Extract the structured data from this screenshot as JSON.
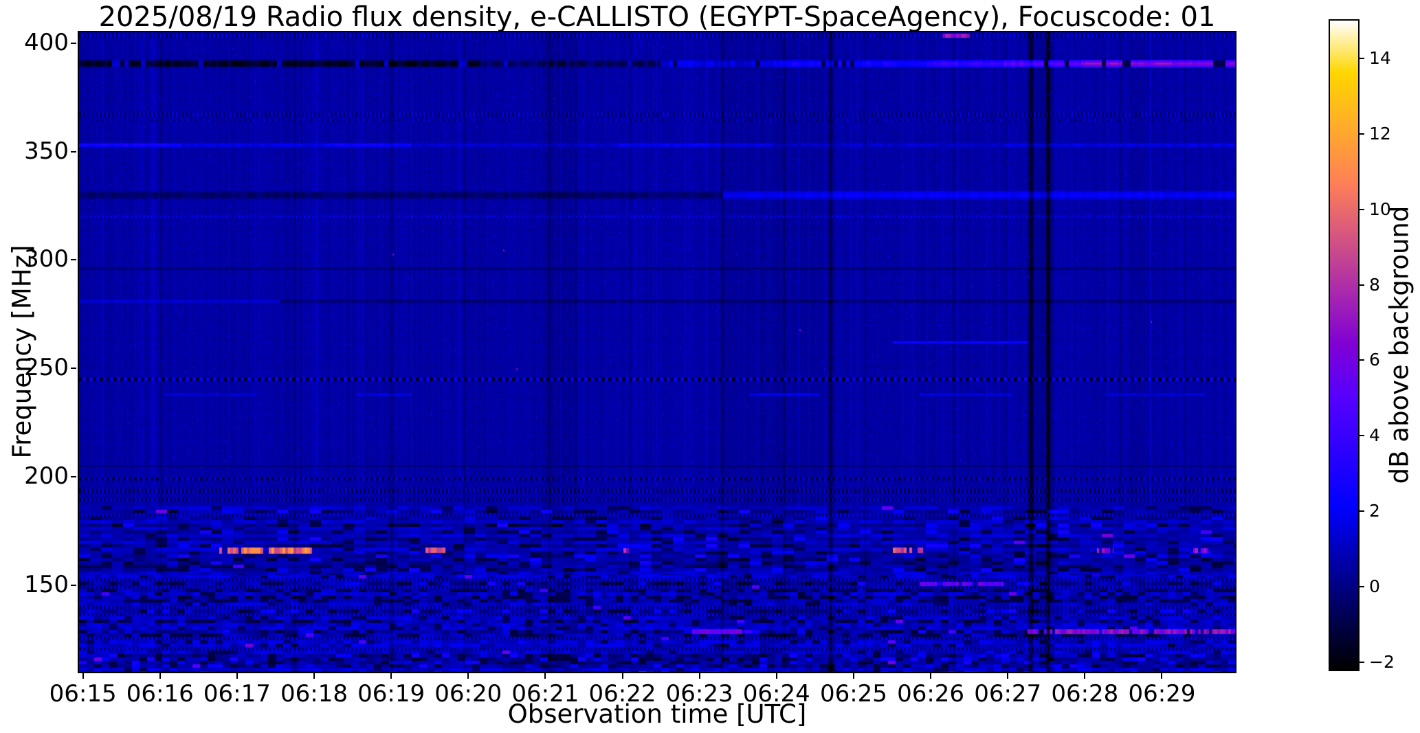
{
  "figure": {
    "title": "2025/08/19  Radio flux density, e-CALLISTO (EGYPT-SpaceAgency), Focuscode: 01",
    "xlabel": "Observation time [UTC]",
    "ylabel": "Frequency [MHz]",
    "colorbar_label": "dB above background"
  },
  "chart_data": {
    "type": "heatmap",
    "subtype": "solar-radio-spectrogram",
    "title": "2025/08/19  Radio flux density, e-CALLISTO (EGYPT-SpaceAgency), Focuscode: 01",
    "xlabel": "Observation time [UTC]",
    "ylabel": "Frequency [MHz]",
    "x_ticks": [
      "06:15",
      "06:16",
      "06:17",
      "06:18",
      "06:19",
      "06:20",
      "06:21",
      "06:22",
      "06:23",
      "06:24",
      "06:25",
      "06:26",
      "06:27",
      "06:28",
      "06:29"
    ],
    "x_tick_minutes": [
      0,
      1,
      2,
      3,
      4,
      5,
      6,
      7,
      8,
      9,
      10,
      11,
      12,
      13,
      14
    ],
    "x_range_minutes": [
      0,
      15
    ],
    "y_ticks": [
      "400",
      "350",
      "300",
      "250",
      "200",
      "150"
    ],
    "y_tick_values": [
      400,
      350,
      300,
      250,
      200,
      150
    ],
    "ylim": [
      110,
      405
    ],
    "grid": false,
    "colorbar": {
      "label": "dB above background",
      "ticks": [
        "14",
        "12",
        "10",
        "8",
        "6",
        "4",
        "2",
        "0",
        "−2"
      ],
      "tick_values": [
        14,
        12,
        10,
        8,
        6,
        4,
        2,
        0,
        -2
      ],
      "vmin": -2.2,
      "vmax": 15,
      "colormap": "gnuplot2"
    },
    "background_db": 0.55,
    "h_bands": [
      {
        "f": 403.5,
        "hw": 1.3,
        "dash": 3,
        "hi": 1.7,
        "lo": -0.6
      },
      {
        "f": 390.5,
        "hw": 1.7,
        "jitter": 1.6,
        "brk": 0.12,
        "segs": [
          [
            0,
            5.2,
            -2
          ],
          [
            5.2,
            7.5,
            -0.8
          ],
          [
            7.5,
            9,
            1.8
          ],
          [
            9,
            11,
            3
          ],
          [
            11,
            12,
            4.2
          ],
          [
            12,
            13,
            5.5
          ],
          [
            13,
            15,
            7
          ]
        ]
      },
      {
        "f": 367,
        "hw": 1.1,
        "dash": 3,
        "hi": 1.6,
        "lo": -0.7
      },
      {
        "f": 364.5,
        "hw": 0.6,
        "dash": 4,
        "hi": 1.2,
        "lo": -0.3
      },
      {
        "f": 353,
        "hw": 0.9,
        "jitter": 0.9,
        "segs": [
          [
            0,
            1.3,
            3.1
          ],
          [
            1.3,
            3.2,
            2
          ],
          [
            3.2,
            4.3,
            2.9
          ],
          [
            4.3,
            7,
            1.5
          ],
          [
            7,
            9,
            2.3
          ],
          [
            9,
            12,
            1.4
          ],
          [
            12,
            15,
            1.9
          ]
        ]
      },
      {
        "f": 330,
        "hw": 1.9,
        "jitter": 0.7,
        "segs": [
          [
            0,
            8.34,
            -0.55
          ],
          [
            8.34,
            15,
            2.3
          ]
        ]
      },
      {
        "f": 320,
        "hw": 0.7,
        "dash": 3,
        "hi": 2.1,
        "lo": 0.4
      },
      {
        "f": 296,
        "hw": 0.6,
        "jitter": 0.3,
        "segs": [
          [
            0,
            15,
            -0.4
          ]
        ]
      },
      {
        "f": 281,
        "hw": 0.7,
        "jitter": 0.5,
        "segs": [
          [
            0,
            2.6,
            1.6
          ],
          [
            2.6,
            15,
            -0.45
          ]
        ]
      },
      {
        "f": 262,
        "hw": 0.6,
        "jitter": 0.6,
        "segs": [
          [
            10.55,
            12.3,
            2.8
          ]
        ]
      },
      {
        "f": 245,
        "hw": 1.0,
        "dash": 5,
        "hi": 2.4,
        "lo": -2.1
      },
      {
        "f": 238,
        "hw": 0.8,
        "jitter": 0.6,
        "segs": [
          [
            1.1,
            2.3,
            1.5
          ],
          [
            3.6,
            4.3,
            1.8
          ],
          [
            8.7,
            9.6,
            2.3
          ],
          [
            10.9,
            12.1,
            1.6
          ],
          [
            13.3,
            14.6,
            1.5
          ]
        ]
      },
      {
        "f": 205,
        "hw": 0.5,
        "jitter": 0.4,
        "segs": [
          [
            0,
            15,
            -0.35
          ]
        ]
      },
      {
        "f": 199,
        "hw": 0.8,
        "dash": 4,
        "hi": 1.5,
        "lo": -1.2
      },
      {
        "f": 193.5,
        "hw": 1.0,
        "dash": 3,
        "hi": 1.7,
        "lo": -1.5
      },
      {
        "f": 189.5,
        "hw": 0.8,
        "dash": 3,
        "hi": 1.4,
        "lo": -1.0
      }
    ],
    "noise_regions": [
      {
        "f0": 155,
        "f1": 186.5,
        "base": 0.45,
        "amp": 1.5,
        "black": 0.15,
        "bright": 0.1,
        "bw": 16,
        "bh": 5,
        "dots": 0.004
      },
      {
        "f0": 110,
        "f1": 155,
        "base": 0.5,
        "amp": 1.9,
        "black": 0.2,
        "bright": 0.13,
        "bw": 11,
        "bh": 5,
        "dots": 0.012
      }
    ],
    "hot_spots": [
      [
        1.78,
        3.02,
        166,
        10,
        1.4
      ],
      [
        4.38,
        4.75,
        166,
        9,
        1.3
      ],
      [
        7.0,
        7.16,
        166,
        7,
        1.1
      ],
      [
        10.55,
        10.95,
        166,
        9,
        1.3
      ],
      [
        13.2,
        13.42,
        166,
        7,
        1.1
      ],
      [
        14.45,
        14.65,
        166,
        6.5,
        1.1
      ],
      [
        12.3,
        15,
        128.5,
        6.3,
        1.0
      ],
      [
        7.95,
        8.6,
        128.5,
        5.5,
        1.0
      ],
      [
        10.9,
        12.0,
        150.5,
        5.2,
        0.9
      ],
      [
        11.2,
        11.55,
        403.5,
        6.6,
        1.0
      ]
    ],
    "specks": [
      [
        4.07,
        303
      ],
      [
        5.5,
        305
      ],
      [
        9.35,
        268
      ],
      [
        13.9,
        272
      ],
      [
        5.67,
        250
      ]
    ],
    "v_lines": [
      [
        1.05,
        -0.5,
        2
      ],
      [
        2.8,
        -0.7,
        2
      ],
      [
        4.05,
        -1.0,
        3
      ],
      [
        5.0,
        -0.6,
        2
      ],
      [
        6.1,
        -0.8,
        2
      ],
      [
        7.15,
        -0.6,
        2
      ],
      [
        8.34,
        -1.2,
        3
      ],
      [
        9.14,
        -0.7,
        2
      ],
      [
        9.75,
        -1.7,
        4
      ],
      [
        10.2,
        -0.7,
        2
      ],
      [
        11.35,
        -0.6,
        2
      ],
      [
        12.35,
        -2.0,
        4
      ],
      [
        12.57,
        -2.0,
        4
      ],
      [
        13.5,
        -0.6,
        2
      ]
    ],
    "v_bands": [
      [
        6.0,
        6.45,
        -0.25
      ],
      [
        8.4,
        9.7,
        -0.2
      ],
      [
        12.3,
        12.65,
        -0.35
      ]
    ]
  }
}
